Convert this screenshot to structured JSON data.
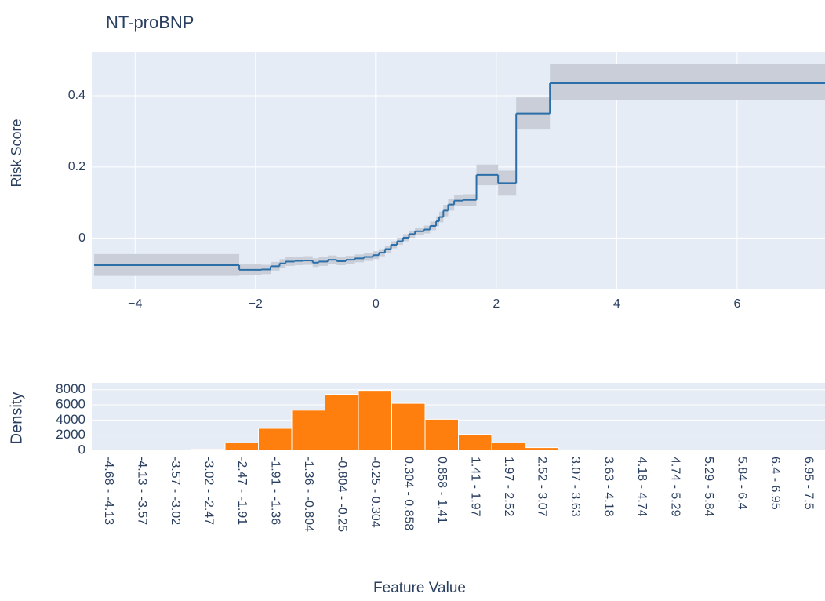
{
  "chart_data": [
    {
      "type": "step",
      "title": "NT-proBNP",
      "y_label": "Risk Score",
      "xlim": [
        -4.72,
        7.46
      ],
      "ylim": [
        -0.141,
        0.523
      ],
      "xticks": [
        {
          "value": -4,
          "label": "−4"
        },
        {
          "value": -2,
          "label": "−2"
        },
        0,
        2,
        4,
        6
      ],
      "yticks": [
        0,
        0.2,
        0.4
      ],
      "grid": true,
      "background": "#e5ecf6",
      "x": [
        -4.68,
        -2.27,
        -1.9,
        -1.75,
        -1.6,
        -1.5,
        -1.35,
        -1.2,
        -1.05,
        -0.95,
        -0.8,
        -0.65,
        -0.5,
        -0.35,
        -0.2,
        -0.05,
        0.05,
        0.15,
        0.25,
        0.35,
        0.45,
        0.55,
        0.65,
        0.8,
        0.9,
        1.0,
        1.05,
        1.12,
        1.2,
        1.3,
        1.45,
        1.67,
        2.03,
        2.33,
        2.89
      ],
      "series": [
        {
          "color": "#2c6fa8",
          "band_color": "#c9ced8",
          "values": [
            -0.075,
            -0.088,
            -0.087,
            -0.078,
            -0.07,
            -0.065,
            -0.063,
            -0.062,
            -0.068,
            -0.065,
            -0.06,
            -0.064,
            -0.06,
            -0.056,
            -0.052,
            -0.047,
            -0.04,
            -0.03,
            -0.018,
            -0.008,
            0.002,
            0.012,
            0.02,
            0.025,
            0.035,
            0.048,
            0.06,
            0.078,
            0.095,
            0.106,
            0.108,
            0.178,
            0.155,
            0.35,
            0.435
          ],
          "lower": [
            -0.105,
            -0.103,
            -0.1,
            -0.09,
            -0.082,
            -0.077,
            -0.075,
            -0.074,
            -0.08,
            -0.077,
            -0.072,
            -0.075,
            -0.071,
            -0.067,
            -0.063,
            -0.058,
            -0.05,
            -0.04,
            -0.028,
            -0.018,
            -0.008,
            0.002,
            0.01,
            0.014,
            0.023,
            0.034,
            0.045,
            0.062,
            0.078,
            0.09,
            0.092,
            0.149,
            0.12,
            0.305,
            0.387
          ],
          "upper": [
            -0.044,
            -0.073,
            -0.074,
            -0.066,
            -0.058,
            -0.053,
            -0.051,
            -0.05,
            -0.056,
            -0.053,
            -0.048,
            -0.053,
            -0.049,
            -0.045,
            -0.041,
            -0.036,
            -0.03,
            -0.02,
            -0.008,
            0.002,
            0.012,
            0.022,
            0.03,
            0.036,
            0.047,
            0.062,
            0.075,
            0.094,
            0.112,
            0.122,
            0.124,
            0.207,
            0.19,
            0.395,
            0.488
          ]
        }
      ]
    },
    {
      "type": "bar",
      "y_label": "Density",
      "x_label": "Feature Value",
      "ylim": [
        0,
        8900
      ],
      "yticks": [
        0,
        2000,
        4000,
        6000,
        8000
      ],
      "grid": true,
      "background": "#e5ecf6",
      "color": "#ff7f0e",
      "categories": [
        "-4.68 - -4.13",
        "-4.13 - -3.57",
        "-3.57 - -3.02",
        "-3.02 - -2.47",
        "-2.47 - -1.91",
        "-1.91 - -1.36",
        "-1.36 - -0.804",
        "-0.804 - -0.25",
        "-0.25 - 0.304",
        "0.304 - 0.858",
        "0.858 - 1.41",
        "1.41 - 1.97",
        "1.97 - 2.52",
        "2.52 - 3.07",
        "3.07 - 3.63",
        "3.63 - 4.18",
        "4.18 - 4.74",
        "4.74 - 5.29",
        "5.29 - 5.84",
        "5.84 - 6.4",
        "6.4 - 6.95",
        "6.95 - 7.5"
      ],
      "values": [
        2,
        10,
        40,
        160,
        1000,
        2900,
        5300,
        7400,
        7900,
        6200,
        4100,
        2100,
        1000,
        350,
        60,
        10,
        3,
        1,
        1,
        0,
        0,
        1
      ]
    }
  ]
}
